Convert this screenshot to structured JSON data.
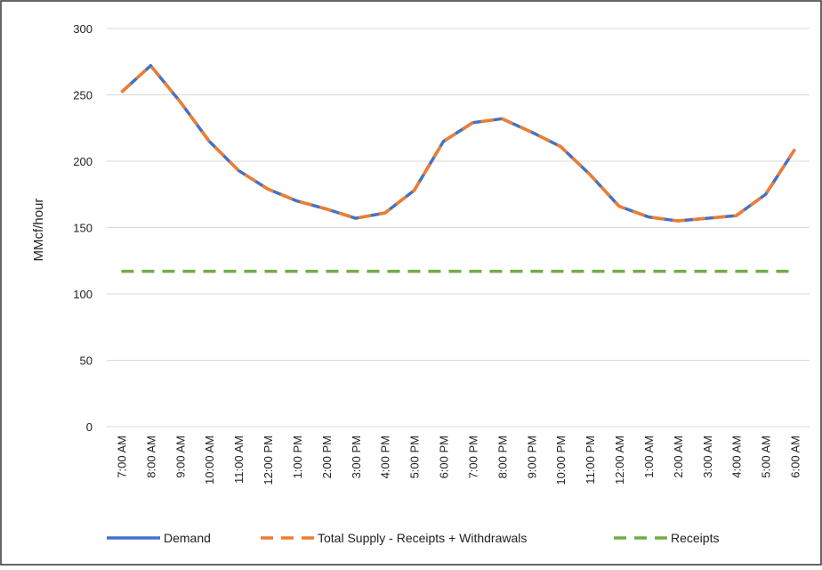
{
  "chart_data": {
    "type": "line",
    "y_label": "MMcf/hour",
    "categories": [
      "7:00 AM",
      "8:00 AM",
      "9:00 AM",
      "10:00 AM",
      "11:00 AM",
      "12:00 PM",
      "1:00 PM",
      "2:00 PM",
      "3:00 PM",
      "4:00 PM",
      "5:00 PM",
      "6:00 PM",
      "7:00 PM",
      "8:00 PM",
      "9:00 PM",
      "10:00 PM",
      "11:00 PM",
      "12:00 AM",
      "1:00 AM",
      "2:00 AM",
      "3:00 AM",
      "4:00 AM",
      "5:00 AM",
      "6:00 AM"
    ],
    "series": [
      {
        "name": "Demand",
        "color": "#4472c4",
        "dashed": false,
        "values": [
          252,
          272,
          245,
          215,
          193,
          179,
          170,
          164,
          157,
          161,
          178,
          215,
          229,
          232,
          222,
          211,
          190,
          166,
          158,
          155,
          157,
          159,
          175,
          209
        ]
      },
      {
        "name": "Total Supply - Receipts + Withdrawals",
        "color": "#ed7d31",
        "dashed": true,
        "values": [
          252,
          272,
          245,
          215,
          193,
          179,
          170,
          164,
          157,
          161,
          178,
          215,
          229,
          232,
          222,
          211,
          190,
          166,
          158,
          155,
          157,
          159,
          175,
          209
        ]
      },
      {
        "name": "Receipts",
        "color": "#70ad47",
        "dashed": true,
        "values": [
          117,
          117,
          117,
          117,
          117,
          117,
          117,
          117,
          117,
          117,
          117,
          117,
          117,
          117,
          117,
          117,
          117,
          117,
          117,
          117,
          117,
          117,
          117,
          117
        ]
      }
    ],
    "ylim": [
      0,
      300
    ],
    "yticks": [
      0,
      50,
      100,
      150,
      200,
      250,
      300
    ],
    "grid": true,
    "legend": "bottom"
  }
}
